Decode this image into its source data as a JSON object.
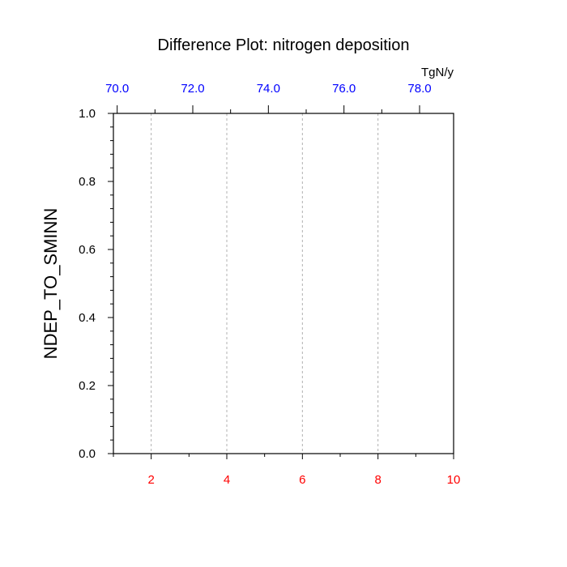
{
  "chart_data": {
    "type": "line",
    "title": "Difference Plot: nitrogen deposition",
    "ylabel": "NDEP_TO_SMINN",
    "top_axis_unit": "TgN/y",
    "xlim": [
      1,
      10
    ],
    "ylim": [
      0.0,
      1.0
    ],
    "bottom_ticks": [
      {
        "value": 2,
        "label": "2"
      },
      {
        "value": 4,
        "label": "4"
      },
      {
        "value": 6,
        "label": "6"
      },
      {
        "value": 8,
        "label": "8"
      },
      {
        "value": 10,
        "label": "10"
      }
    ],
    "bottom_minor": [
      1,
      3,
      5,
      7,
      9
    ],
    "top_xlim": [
      69.9,
      78.9
    ],
    "top_ticks": [
      {
        "value": 70.0,
        "label": "70.0"
      },
      {
        "value": 72.0,
        "label": "72.0"
      },
      {
        "value": 74.0,
        "label": "74.0"
      },
      {
        "value": 76.0,
        "label": "76.0"
      },
      {
        "value": 78.0,
        "label": "78.0"
      }
    ],
    "top_minor": [
      71.0,
      73.0,
      75.0,
      77.0
    ],
    "y_ticks": [
      {
        "value": 0.0,
        "label": "0.0"
      },
      {
        "value": 0.2,
        "label": "0.2"
      },
      {
        "value": 0.4,
        "label": "0.4"
      },
      {
        "value": 0.6,
        "label": "0.6"
      },
      {
        "value": 0.8,
        "label": "0.8"
      },
      {
        "value": 1.0,
        "label": "1.0"
      }
    ],
    "y_minor_step": 0.04,
    "grid": "vertical-dashed",
    "series": [],
    "colors": {
      "bottom_axis": "#ff0000",
      "top_axis": "#0000ff",
      "grid": "#b0b0b0",
      "frame": "#000000"
    }
  }
}
